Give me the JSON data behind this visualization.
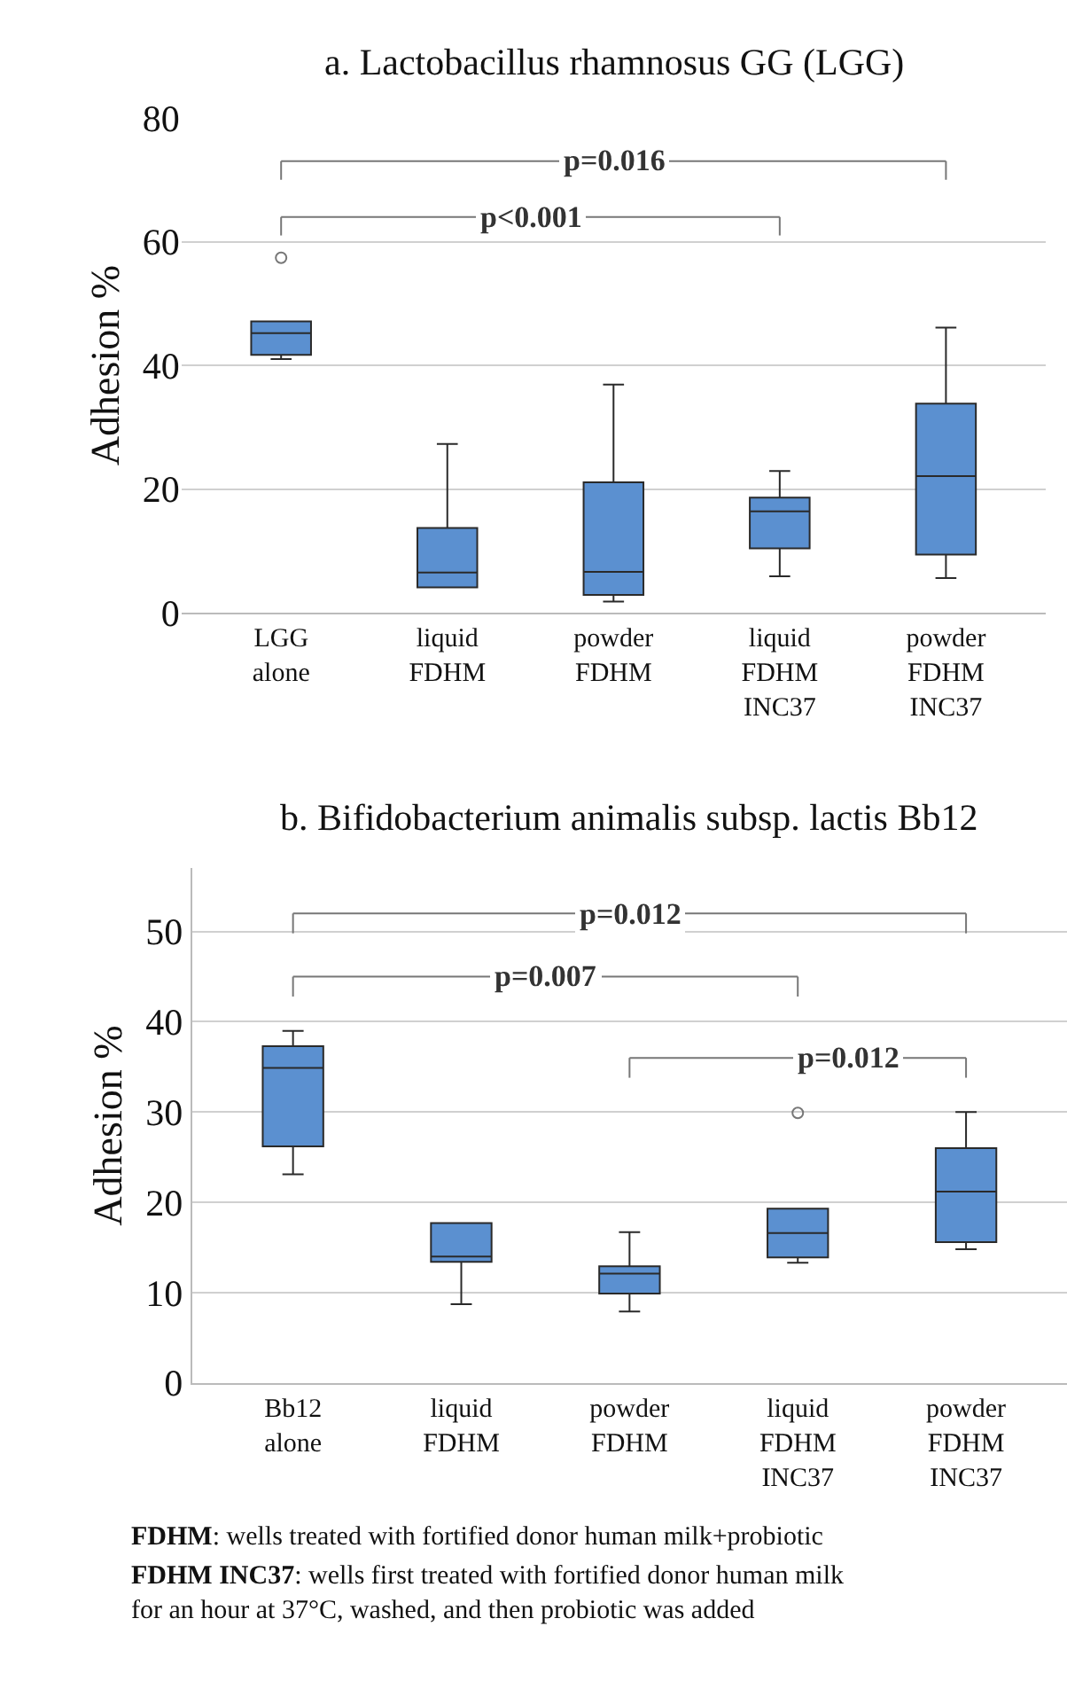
{
  "chart_data": [
    {
      "type": "box",
      "title": "a. Lactobacillus rhamnosus GG (LGG)",
      "ylabel": "Adhesion %",
      "categories": [
        "LGG\nalone",
        "liquid\nFDHM",
        "powder\nFDHM",
        "liquid\nFDHM\nINC37",
        "powder\nFDHM\nINC37"
      ],
      "color": "#5b90d0",
      "ylim": [
        0,
        80
      ],
      "yticks": [
        0,
        20,
        40,
        60,
        80
      ],
      "grid": "y",
      "annotations": [
        "p=0.016",
        "p<0.001"
      ],
      "boxes": [
        {
          "low": 41,
          "q1": 41.7,
          "median": 45.2,
          "q3": 47.1,
          "high": 47.1,
          "outliers": [
            57.4
          ]
        },
        {
          "low": 4.1,
          "q1": 4.1,
          "median": 6.5,
          "q3": 13.7,
          "high": 27.3
        },
        {
          "low": 1.8,
          "q1": 2.9,
          "median": 6.6,
          "q3": 21.1,
          "high": 36.9
        },
        {
          "low": 5.9,
          "q1": 10.4,
          "median": 16.4,
          "q3": 18.6,
          "high": 22.9
        },
        {
          "low": 5.6,
          "q1": 9.4,
          "median": 22.1,
          "q3": 33.8,
          "high": 46.1
        }
      ]
    },
    {
      "type": "box",
      "title": "b. Bifidobacterium animalis subsp. lactis Bb12",
      "ylabel": "Adhesion %",
      "categories": [
        "Bb12\nalone",
        "liquid\nFDHM",
        "powder\nFDHM",
        "liquid\nFDHM\nINC37",
        "powder\nFDHM\nINC37"
      ],
      "color": "#5b90d0",
      "ylim": [
        0,
        57
      ],
      "yticks": [
        0,
        10,
        20,
        30,
        40,
        50
      ],
      "grid": "y",
      "annotations": [
        "p=0.012",
        "p=0.007",
        "p=0.012",
        "FDHM: wells treated with fortified donor human milk+probiotic",
        "FDHM INC37: wells first treated with fortified donor human milk\nfor an hour at 37°C, washed, and then probiotic was added"
      ],
      "boxes": [
        {
          "low": 23.1,
          "q1": 26.2,
          "median": 34.9,
          "q3": 37.3,
          "high": 39.0
        },
        {
          "low": 8.7,
          "q1": 13.4,
          "median": 14.0,
          "q3": 17.7,
          "high": 17.7
        },
        {
          "low": 7.9,
          "q1": 9.9,
          "median": 12.1,
          "q3": 12.9,
          "high": 16.7
        },
        {
          "low": 13.3,
          "q1": 13.9,
          "median": 16.6,
          "q3": 19.3,
          "high": 19.3,
          "outliers": [
            29.9
          ]
        },
        {
          "low": 14.8,
          "q1": 15.6,
          "median": 21.2,
          "q3": 26.0,
          "high": 30.0
        }
      ]
    }
  ]
}
